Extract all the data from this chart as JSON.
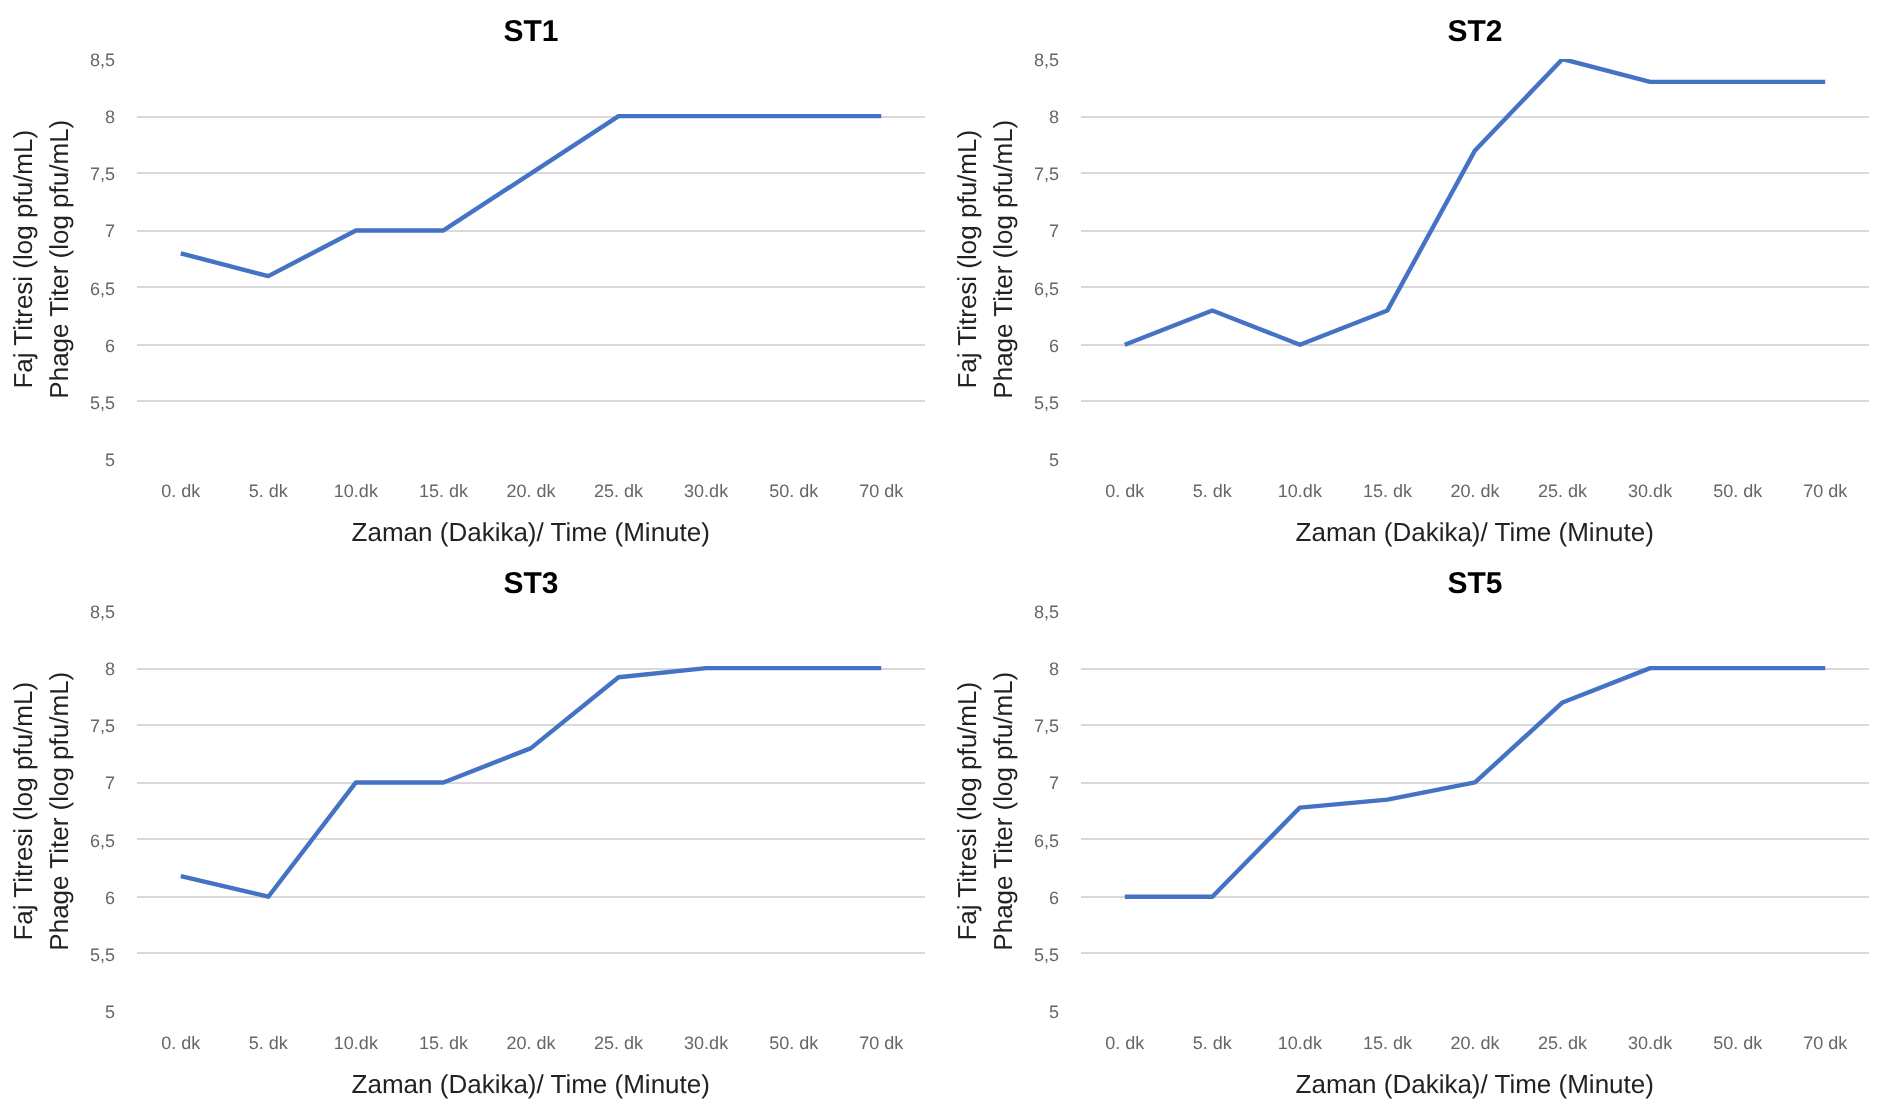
{
  "chart_data": [
    {
      "type": "line",
      "title": "ST1",
      "xlabel": "Zaman (Dakika)/ Time (Minute)",
      "ylabel": "Faj Titresi (log pfu/mL)\nPhage Titer (log pfu/mL)",
      "categories": [
        "0. dk",
        "5. dk",
        "10.dk",
        "15. dk",
        "20. dk",
        "25. dk",
        "30.dk",
        "50. dk",
        "70 dk"
      ],
      "series": [
        {
          "color": "#4472c4",
          "values": [
            6.8,
            6.6,
            7,
            7,
            7.5,
            8,
            8,
            8,
            8
          ]
        }
      ],
      "ylim": [
        5,
        8.5
      ],
      "yticks": [
        5,
        {
          "value": 5.5,
          "label": "5,5"
        },
        6,
        {
          "value": 6.5,
          "label": "6,5"
        },
        7,
        {
          "value": 7.5,
          "label": "7,5"
        },
        8,
        {
          "value": 8.5,
          "label": "8,5"
        }
      ],
      "grid": "y",
      "marker": "none",
      "line_style": "solid"
    },
    {
      "type": "line",
      "title": "ST2",
      "xlabel": "Zaman (Dakika)/ Time (Minute)",
      "ylabel": "Faj Titresi (log pfu/mL)\nPhage Titer (log pfu/mL)",
      "categories": [
        "0. dk",
        "5. dk",
        "10.dk",
        "15. dk",
        "20. dk",
        "25. dk",
        "30.dk",
        "50. dk",
        "70 dk"
      ],
      "series": [
        {
          "color": "#4472c4",
          "values": [
            6,
            6.3,
            6,
            6.3,
            7.7,
            8.5,
            8.3,
            8.3,
            8.3
          ]
        }
      ],
      "ylim": [
        5,
        8.5
      ],
      "yticks": [
        5,
        {
          "value": 5.5,
          "label": "5,5"
        },
        6,
        {
          "value": 6.5,
          "label": "6,5"
        },
        7,
        {
          "value": 7.5,
          "label": "7,5"
        },
        8,
        {
          "value": 8.5,
          "label": "8,5"
        }
      ],
      "grid": "y",
      "marker": "none",
      "line_style": "solid"
    },
    {
      "type": "line",
      "title": "ST3",
      "xlabel": "Zaman (Dakika)/ Time (Minute)",
      "ylabel": "Faj Titresi (log pfu/mL)\nPhage Titer (log pfu/mL)",
      "categories": [
        "0. dk",
        "5. dk",
        "10.dk",
        "15. dk",
        "20. dk",
        "25. dk",
        "30.dk",
        "50. dk",
        "70 dk"
      ],
      "series": [
        {
          "color": "#4472c4",
          "values": [
            6.18,
            6,
            7,
            7,
            7.3,
            7.92,
            8,
            8,
            8
          ]
        }
      ],
      "ylim": [
        5,
        8.5
      ],
      "yticks": [
        5,
        {
          "value": 5.5,
          "label": "5,5"
        },
        6,
        {
          "value": 6.5,
          "label": "6,5"
        },
        7,
        {
          "value": 7.5,
          "label": "7,5"
        },
        8,
        {
          "value": 8.5,
          "label": "8,5"
        }
      ],
      "grid": "y",
      "marker": "none",
      "line_style": "solid"
    },
    {
      "type": "line",
      "title": "ST5",
      "xlabel": "Zaman (Dakika)/ Time (Minute)",
      "ylabel": "Faj Titresi (log pfu/mL)\nPhage Titer (log pfu/mL)",
      "categories": [
        "0. dk",
        "5. dk",
        "10.dk",
        "15. dk",
        "20. dk",
        "25. dk",
        "30.dk",
        "50. dk",
        "70 dk"
      ],
      "series": [
        {
          "color": "#4472c4",
          "values": [
            6,
            6,
            6.78,
            6.85,
            7,
            7.7,
            8,
            8,
            8
          ]
        }
      ],
      "ylim": [
        5,
        8.5
      ],
      "yticks": [
        5,
        {
          "value": 5.5,
          "label": "5,5"
        },
        6,
        {
          "value": 6.5,
          "label": "6,5"
        },
        7,
        {
          "value": 7.5,
          "label": "7,5"
        },
        8,
        {
          "value": 8.5,
          "label": "8,5"
        }
      ],
      "grid": "y",
      "marker": "none",
      "line_style": "solid"
    }
  ]
}
